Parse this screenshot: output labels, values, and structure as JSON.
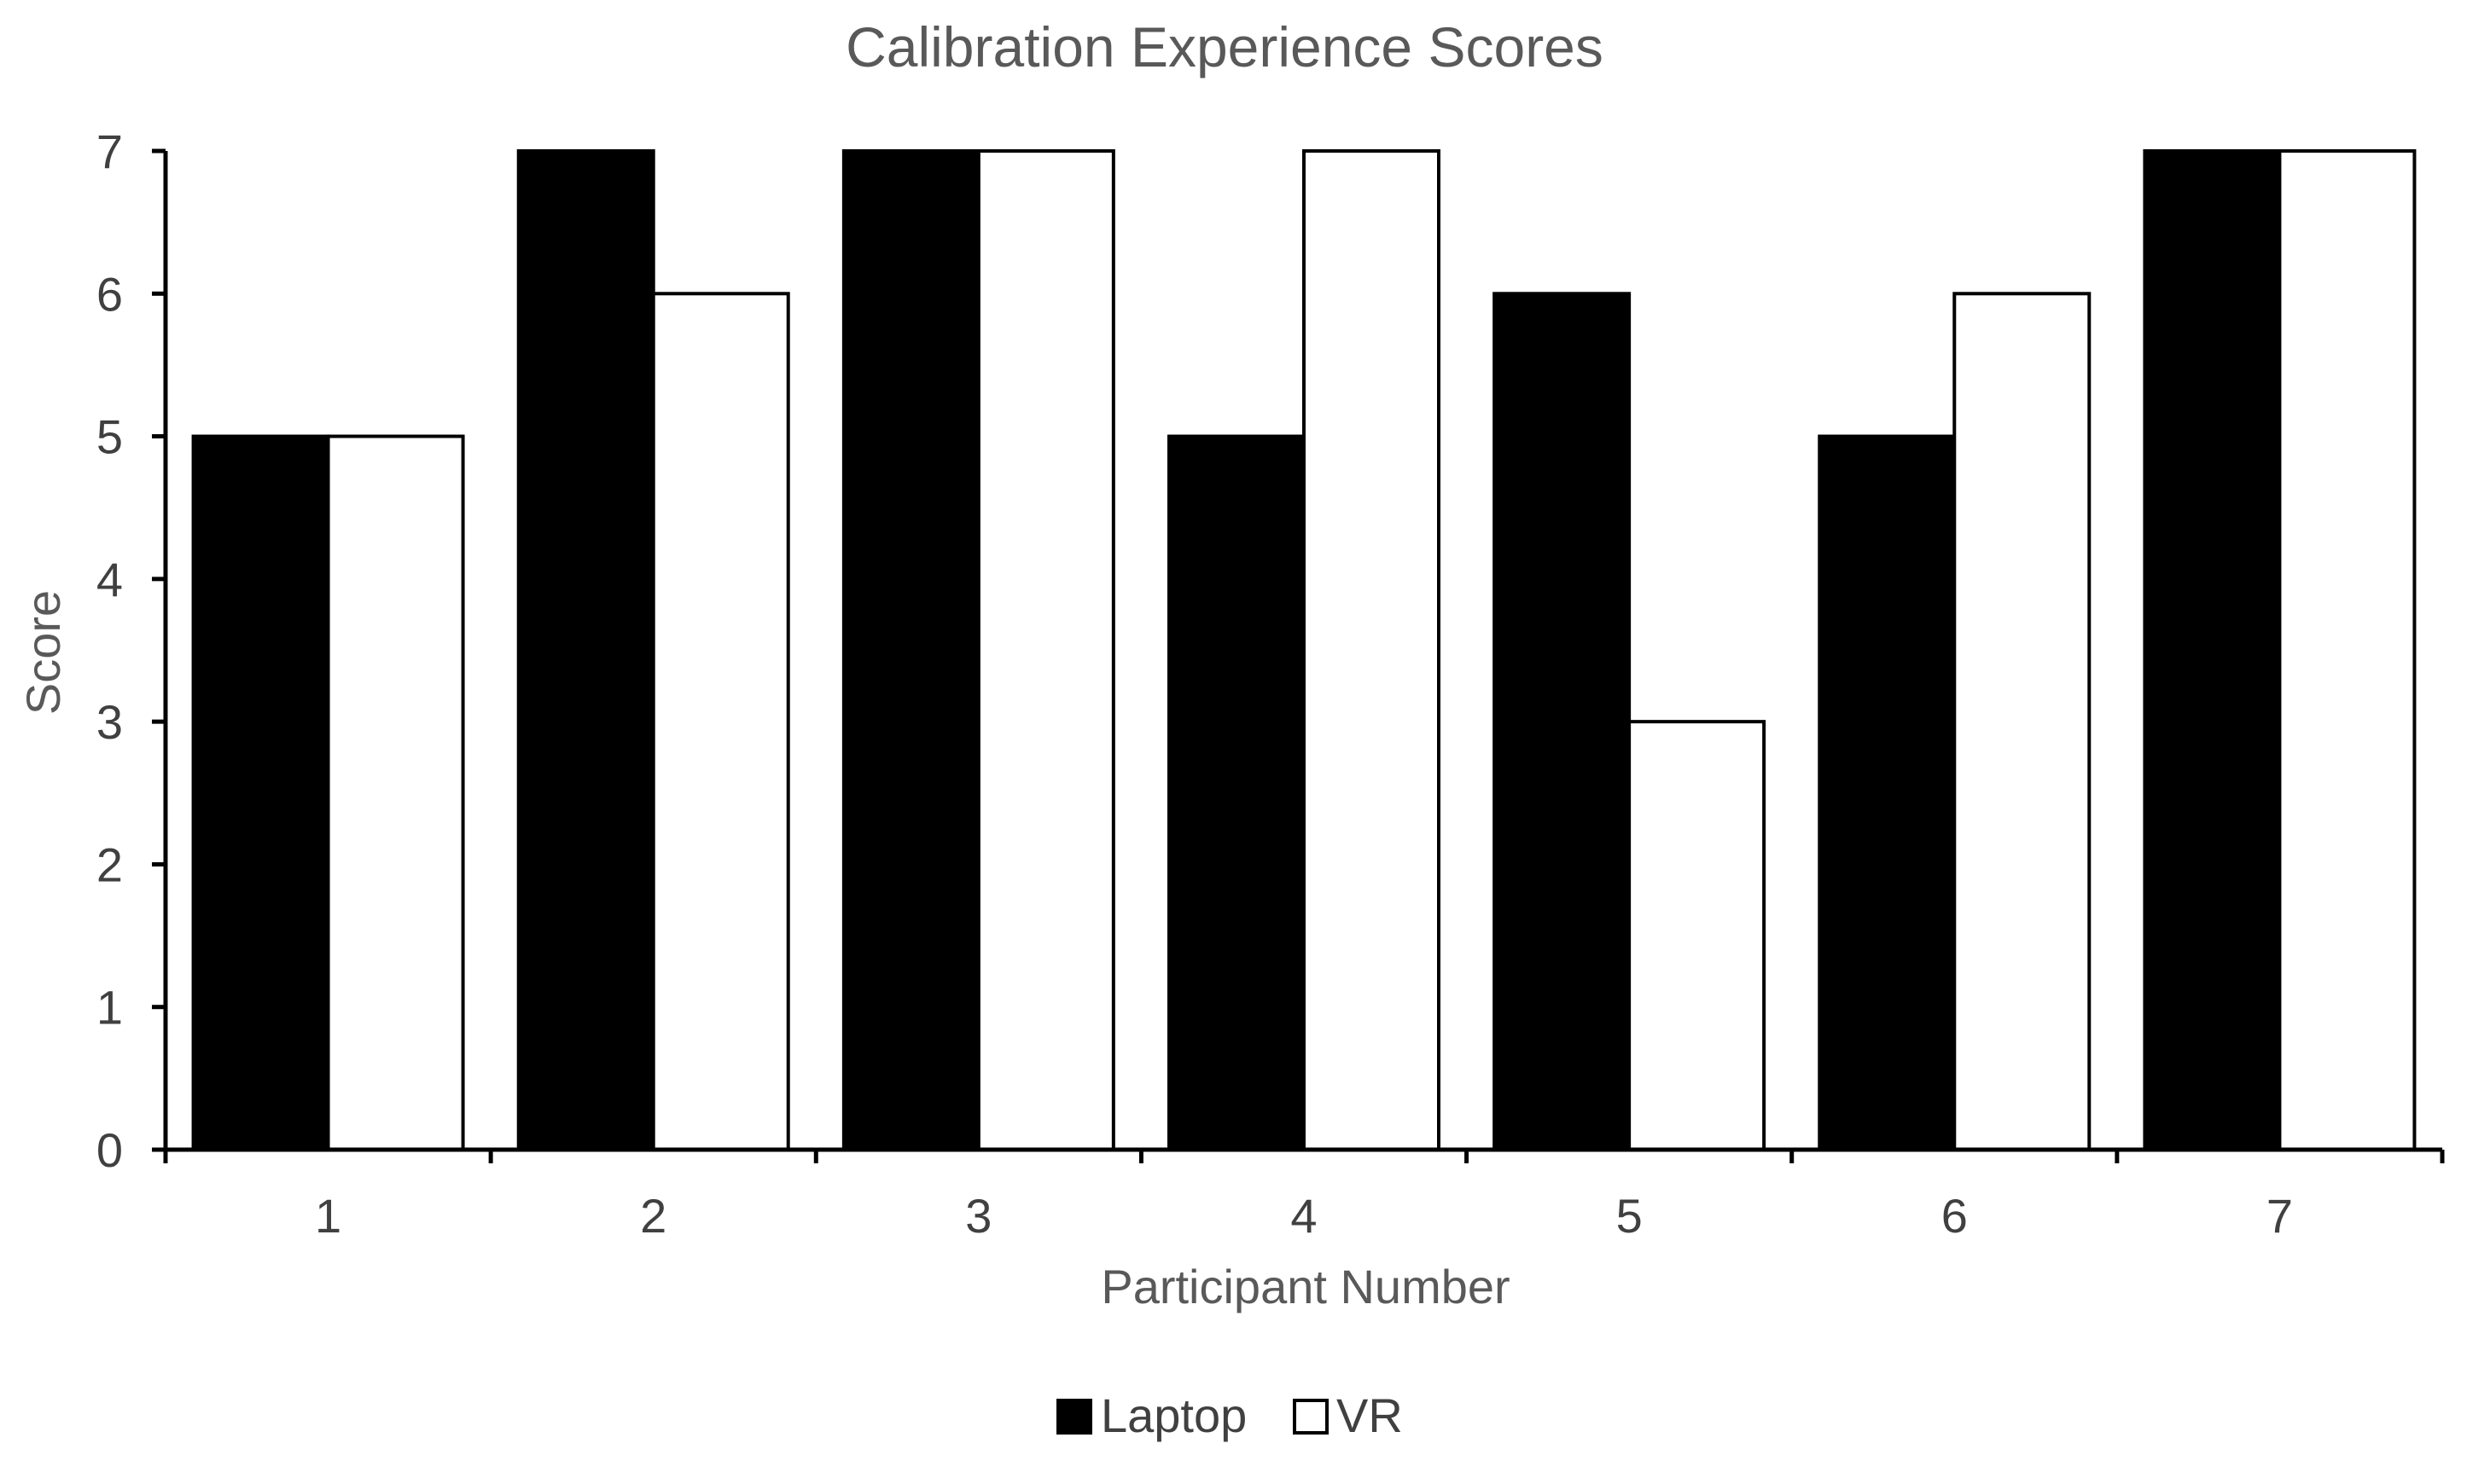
{
  "chart_data": {
    "type": "bar",
    "title": "Calibration Experience Scores",
    "xlabel": "Participant Number",
    "ylabel": "Score",
    "categories": [
      "1",
      "2",
      "3",
      "4",
      "5",
      "6",
      "7"
    ],
    "series": [
      {
        "name": "Laptop",
        "values": [
          5,
          7,
          7,
          5,
          6,
          5,
          7
        ],
        "fill": "#000000",
        "stroke": "#000000"
      },
      {
        "name": "VR",
        "values": [
          5,
          6,
          7,
          7,
          3,
          6,
          7
        ],
        "fill": "#ffffff",
        "stroke": "#000000"
      }
    ],
    "ylim": [
      0,
      7
    ],
    "yticks": [
      0,
      1,
      2,
      3,
      4,
      5,
      6,
      7
    ],
    "grid": false,
    "legend_position": "bottom-center"
  }
}
